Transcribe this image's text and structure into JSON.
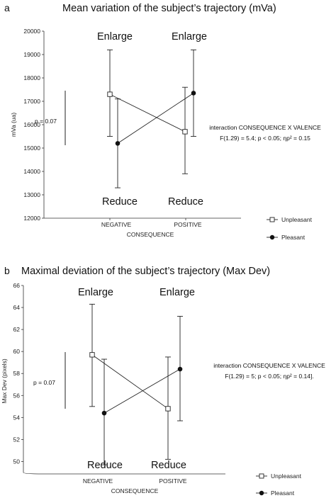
{
  "chart_data": [
    {
      "type": "line",
      "panel_letter": "a",
      "title": "Mean variation of the subject’s trajectory (mVa)",
      "ylabel": "mVa (ua)",
      "xlabel": "CONSEQUENCE",
      "categories": [
        "NEGATIVE",
        "POSITIVE"
      ],
      "ylim": [
        12000,
        20000
      ],
      "yticks": [
        "20000",
        "19000",
        "18000",
        "17000",
        "16000",
        "15000",
        "14000",
        "13000",
        "12000"
      ],
      "series": [
        {
          "name": "Unpleasant",
          "values": [
            17300,
            15700
          ],
          "err_low": [
            15500,
            13900
          ],
          "err_high": [
            19200,
            17600
          ]
        },
        {
          "name": "Pleasant",
          "values": [
            15200,
            17350
          ],
          "err_low": [
            13300,
            15500
          ],
          "err_high": [
            17100,
            19200
          ]
        }
      ],
      "annotations": {
        "enlarge_left": "Enlarge",
        "enlarge_right": "Enlarge",
        "reduce_left": "Reduce",
        "reduce_right": "Reduce",
        "p_value": "p = 0.07",
        "stat_line1": "interaction CONSEQUENCE X VALENCE",
        "stat_line2": "F(1.29) = 5.4; p < 0.05; ηp² = 0.15"
      }
    },
    {
      "type": "line",
      "panel_letter": "b",
      "title": "Maximal deviation of the subject’s trajectory (Max Dev)",
      "ylabel": "Max Dev (pixels)",
      "xlabel": "CONSEQUENCE",
      "categories": [
        "NEGATIVE",
        "POSITIVE"
      ],
      "ylim": [
        49,
        66
      ],
      "yticks": [
        "66",
        "64",
        "62",
        "60",
        "58",
        "56",
        "54",
        "52",
        "50"
      ],
      "series": [
        {
          "name": "Unpleasant",
          "values": [
            59.7,
            54.8
          ],
          "err_low": [
            55.0,
            50.2
          ],
          "err_high": [
            64.3,
            59.5
          ]
        },
        {
          "name": "Pleasant",
          "values": [
            54.4,
            58.4
          ],
          "err_low": [
            49.7,
            53.7
          ],
          "err_high": [
            59.3,
            63.2
          ]
        }
      ],
      "annotations": {
        "enlarge_left": "Enlarge",
        "enlarge_right": "Enlarge",
        "reduce_left": "Reduce",
        "reduce_right": "Reduce",
        "p_value": "p = 0.07",
        "stat_line1": "interaction CONSEQUENCE X VALENCE",
        "stat_line2": "F(1.29) = 5; p < 0.05; ηp² = 0.14]."
      }
    }
  ]
}
